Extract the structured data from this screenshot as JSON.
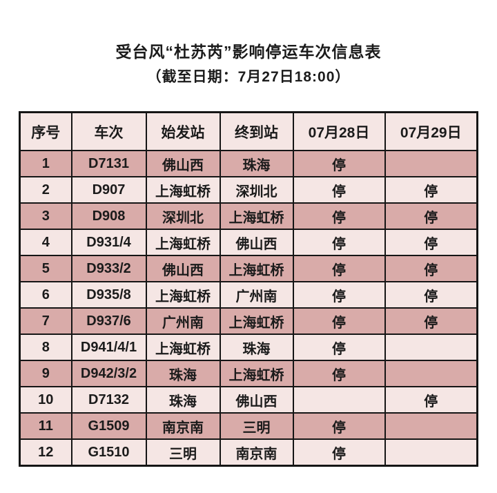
{
  "chart_data": {
    "type": "table",
    "title": "受台风“杜苏芮”影响停运车次信息表",
    "subtitle": "（截至日期：7月27日18:00）",
    "columns": [
      "序号",
      "车次",
      "始发站",
      "终到站",
      "07月28日",
      "07月29日"
    ],
    "suspended_marker": "停",
    "rows": [
      {
        "no": "1",
        "train": "D7131",
        "from": "佛山西",
        "to": "珠海",
        "d28": "停",
        "d29": ""
      },
      {
        "no": "2",
        "train": "D907",
        "from": "上海虹桥",
        "to": "深圳北",
        "d28": "停",
        "d29": "停"
      },
      {
        "no": "3",
        "train": "D908",
        "from": "深圳北",
        "to": "上海虹桥",
        "d28": "停",
        "d29": "停"
      },
      {
        "no": "4",
        "train": "D931/4",
        "from": "上海虹桥",
        "to": "佛山西",
        "d28": "停",
        "d29": "停"
      },
      {
        "no": "5",
        "train": "D933/2",
        "from": "佛山西",
        "to": "上海虹桥",
        "d28": "停",
        "d29": "停"
      },
      {
        "no": "6",
        "train": "D935/8",
        "from": "上海虹桥",
        "to": "广州南",
        "d28": "停",
        "d29": "停"
      },
      {
        "no": "7",
        "train": "D937/6",
        "from": "广州南",
        "to": "上海虹桥",
        "d28": "停",
        "d29": "停"
      },
      {
        "no": "8",
        "train": "D941/4/1",
        "from": "上海虹桥",
        "to": "珠海",
        "d28": "停",
        "d29": ""
      },
      {
        "no": "9",
        "train": "D942/3/2",
        "from": "珠海",
        "to": "上海虹桥",
        "d28": "停",
        "d29": ""
      },
      {
        "no": "10",
        "train": "D7132",
        "from": "珠海",
        "to": "佛山西",
        "d28": "",
        "d29": "停"
      },
      {
        "no": "11",
        "train": "G1509",
        "from": "南京南",
        "to": "三明",
        "d28": "停",
        "d29": ""
      },
      {
        "no": "12",
        "train": "G1510",
        "from": "三明",
        "to": "南京南",
        "d28": "停",
        "d29": ""
      }
    ]
  },
  "colors": {
    "row_dark": "#d9aba9",
    "row_light": "#f5e6e4",
    "header_bg": "#f5e6e4",
    "border": "#151515",
    "text": "#1b1b1b",
    "page_bg": "#ffffff"
  }
}
